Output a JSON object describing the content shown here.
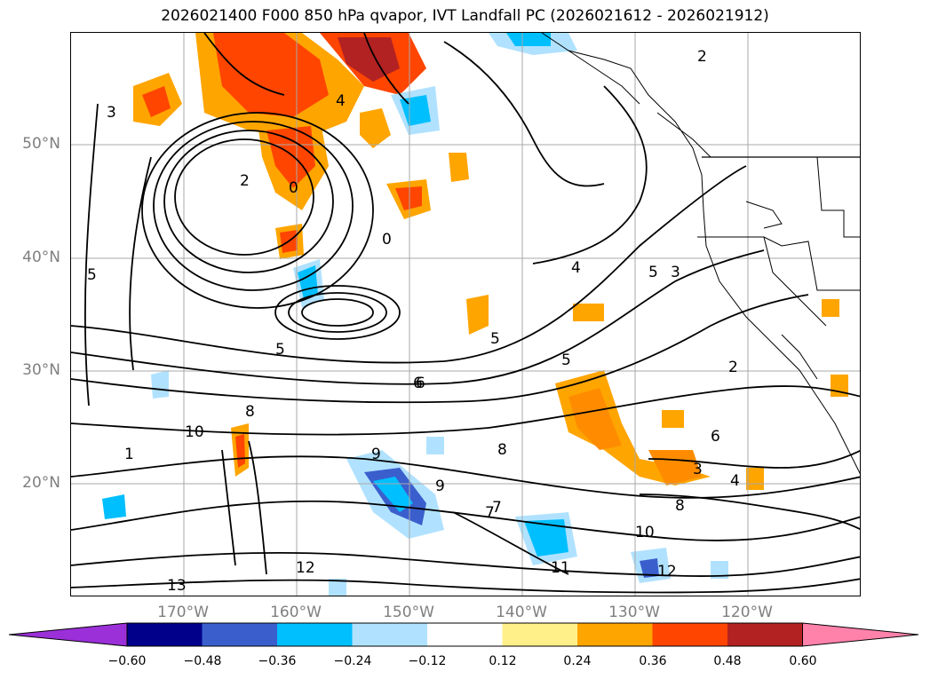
{
  "title": "2026021400 F000 850 hPa qvapor, IVT Landfall PC (2026021612 - 2026021912)",
  "lat_labels": [
    "50°N",
    "40°N",
    "30°N",
    "20°N"
  ],
  "lon_labels": [
    "170°W",
    "160°W",
    "150°W",
    "140°W",
    "130°W",
    "120°W"
  ],
  "colorbar": {
    "tick_labels": [
      "−0.60",
      "−0.48",
      "−0.36",
      "−0.24",
      "−0.12",
      "0.12",
      "0.24",
      "0.36",
      "0.48",
      "0.60"
    ],
    "colors": [
      "#9b30d9",
      "#00008b",
      "#3a5fcd",
      "#00bfff",
      "#b0e2ff",
      "#ffffff",
      "#fff08a",
      "#ffa500",
      "#ff4500",
      "#b22222",
      "#ff82ab"
    ]
  },
  "contour_labels": [
    "2",
    "3",
    "4",
    "5",
    "6",
    "8",
    "10",
    "12",
    "0",
    "7",
    "9",
    "11",
    "2",
    "3",
    "4",
    "5",
    "5",
    "5",
    "6",
    "8",
    "10",
    "12",
    "0",
    "2",
    "3",
    "4",
    "5",
    "6",
    "8",
    "9",
    "1",
    "7",
    "13"
  ]
}
